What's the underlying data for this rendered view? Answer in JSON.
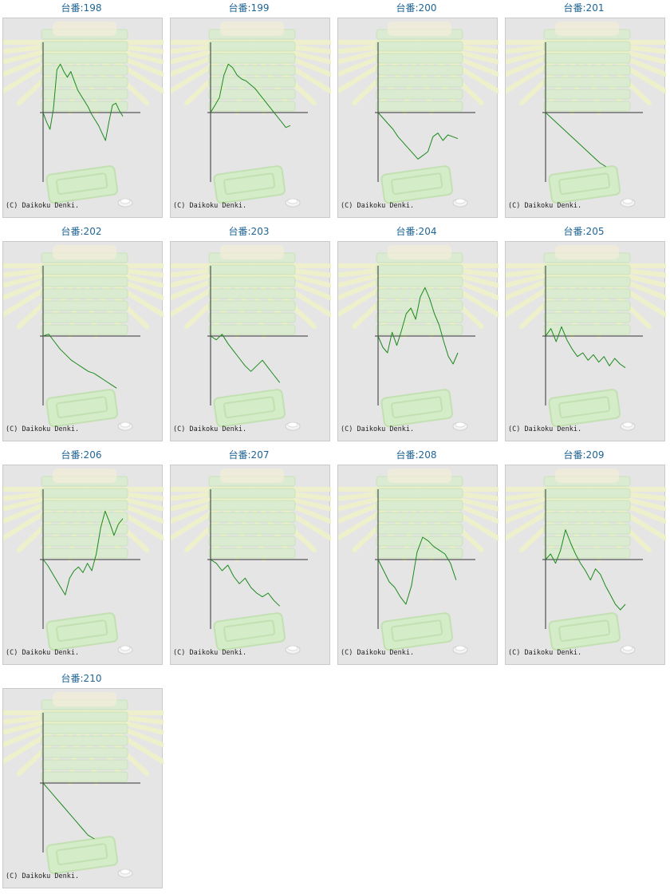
{
  "colors": {
    "line": "#1c8a1c",
    "axis": "#333333",
    "label": "#1f6496",
    "panel": "#e5e5e5"
  },
  "copyright": "(C) Daikoku Denki.",
  "chart_data": [
    {
      "type": "line",
      "title": "台番:198",
      "values": [
        0,
        -500,
        -900,
        200,
        2300,
        2600,
        2200,
        1900,
        2200,
        1700,
        1200,
        900,
        600,
        300,
        -100,
        -400,
        -700,
        -1100,
        -1500,
        -500,
        400,
        500,
        100,
        -200
      ]
    },
    {
      "type": "line",
      "title": "台番:199",
      "values": [
        0,
        400,
        800,
        2000,
        2600,
        2400,
        2000,
        1800,
        1700,
        1500,
        1300,
        1000,
        700,
        400,
        100,
        -200,
        -500,
        -800,
        -700
      ]
    },
    {
      "type": "line",
      "title": "台番:200",
      "values": [
        0,
        -300,
        -600,
        -900,
        -1300,
        -1600,
        -1900,
        -2200,
        -2500,
        -2300,
        -2100,
        -1300,
        -1100,
        -1500,
        -1200,
        -1300,
        -1400
      ]
    },
    {
      "type": "line",
      "title": "台番:201",
      "values": [
        0,
        -300,
        -600,
        -900,
        -1200,
        -1500,
        -1800,
        -2100,
        -2400,
        -2700,
        -2900
      ]
    },
    {
      "type": "line",
      "title": "台番:202",
      "values": [
        0,
        100,
        -300,
        -700,
        -1000,
        -1300,
        -1500,
        -1700,
        -1900,
        -2000,
        -2200,
        -2400,
        -2600,
        -2800
      ]
    },
    {
      "type": "line",
      "title": "台番:203",
      "values": [
        0,
        -200,
        100,
        -400,
        -800,
        -1200,
        -1600,
        -1900,
        -1600,
        -1300,
        -1700,
        -2100,
        -2500
      ]
    },
    {
      "type": "line",
      "title": "台番:204",
      "values": [
        0,
        -600,
        -900,
        200,
        -500,
        300,
        1200,
        1500,
        900,
        2100,
        2600,
        2000,
        1200,
        600,
        -300,
        -1100,
        -1500,
        -900
      ]
    },
    {
      "type": "line",
      "title": "台番:205",
      "values": [
        0,
        400,
        -300,
        500,
        -200,
        -700,
        -1100,
        -900,
        -1300,
        -1000,
        -1400,
        -1100,
        -1600,
        -1200,
        -1500,
        -1700
      ]
    },
    {
      "type": "line",
      "title": "台番:206",
      "values": [
        0,
        -300,
        -700,
        -1100,
        -1500,
        -1900,
        -1000,
        -600,
        -400,
        -700,
        -200,
        -600,
        300,
        1700,
        2600,
        2000,
        1300,
        1900,
        2200
      ]
    },
    {
      "type": "line",
      "title": "台番:207",
      "values": [
        0,
        -200,
        -600,
        -300,
        -900,
        -1300,
        -1000,
        -1500,
        -1800,
        -2000,
        -1800,
        -2200,
        -2500
      ]
    },
    {
      "type": "line",
      "title": "台番:208",
      "values": [
        0,
        -600,
        -1200,
        -1500,
        -2000,
        -2400,
        -1400,
        400,
        1200,
        1000,
        700,
        500,
        300,
        -200,
        -1100
      ]
    },
    {
      "type": "line",
      "title": "台番:209",
      "values": [
        0,
        300,
        -200,
        500,
        1600,
        900,
        300,
        -200,
        -600,
        -1100,
        -500,
        -800,
        -1400,
        -1900,
        -2400,
        -2700,
        -2400
      ]
    },
    {
      "type": "line",
      "title": "台番:210",
      "values": [
        0,
        -400,
        -800,
        -1200,
        -1600,
        -2000,
        -2400,
        -2800,
        -3000
      ]
    }
  ]
}
